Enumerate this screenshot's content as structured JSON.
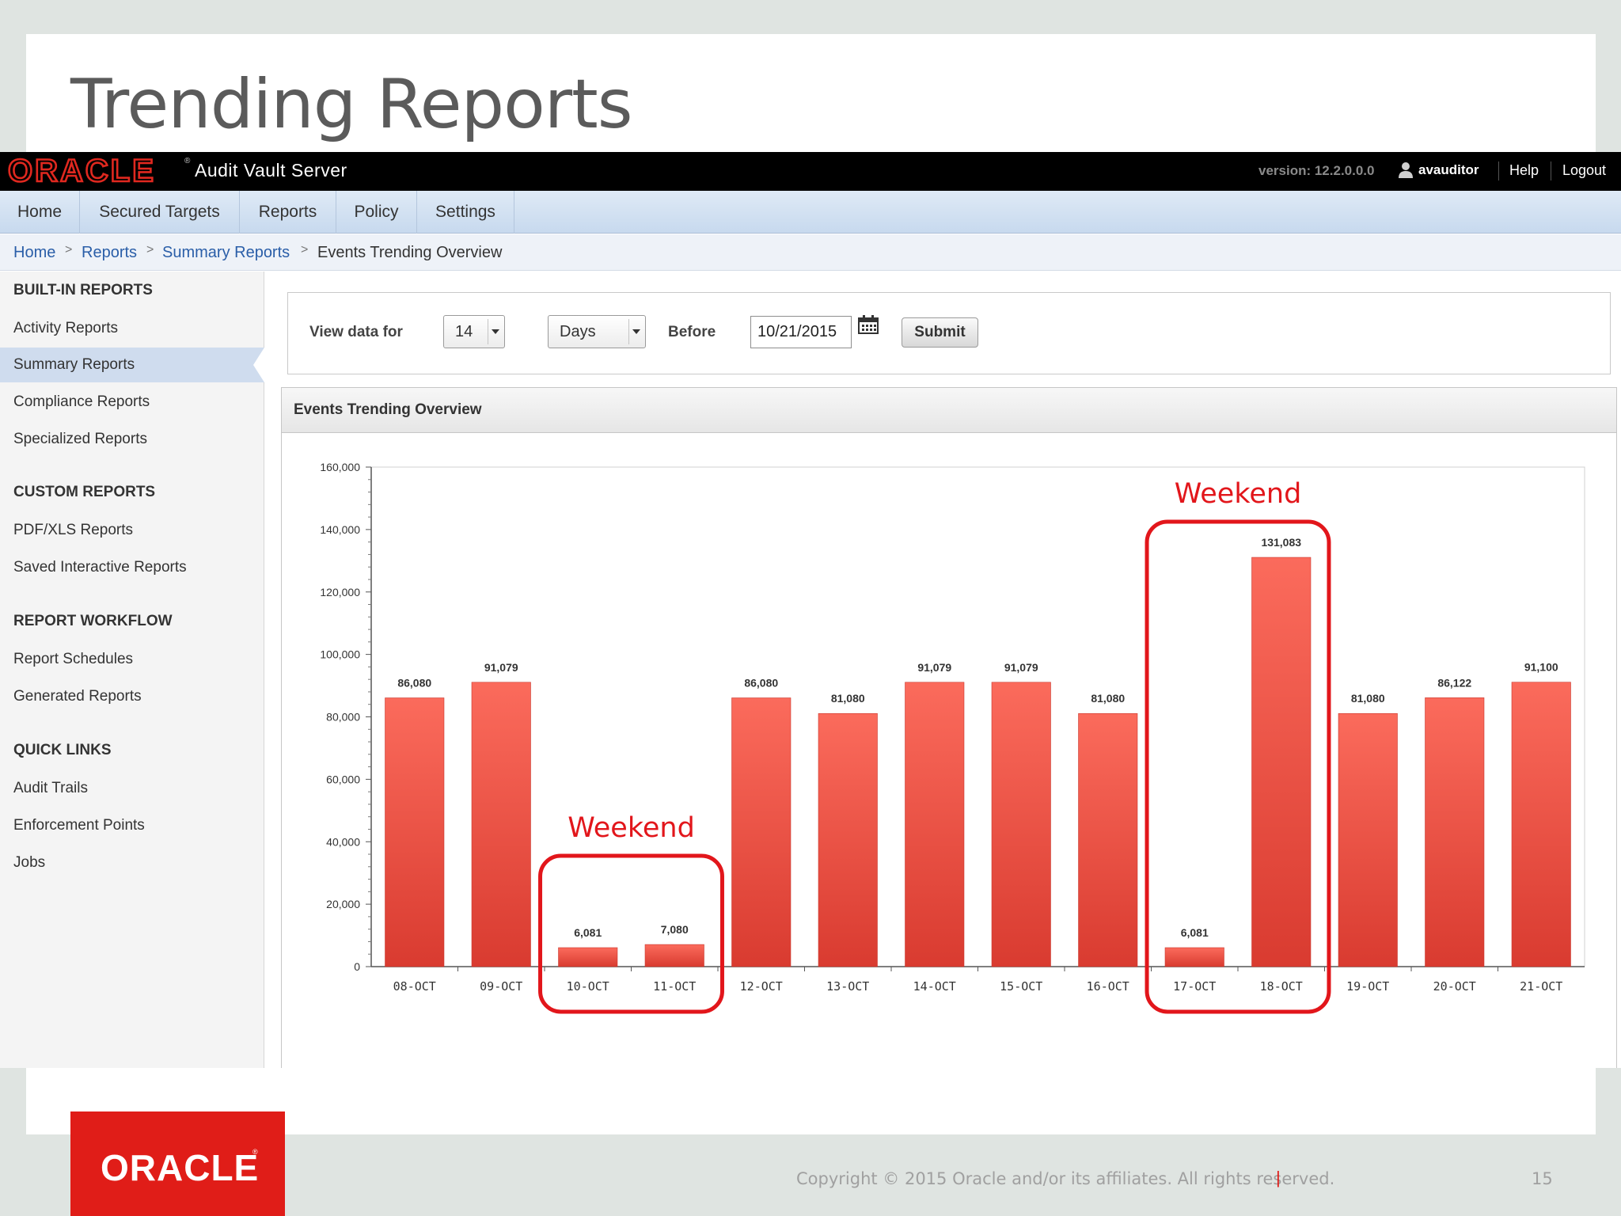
{
  "slide": {
    "title": "Trending Reports",
    "copyright": "Copyright © 2015 Oracle and/or its affiliates. All rights reserved.",
    "copyright_sep": "|",
    "page_number": "15",
    "logo_text": "ORACLE",
    "brand_color": "#e01d18"
  },
  "topbar": {
    "logo": "ORACLE",
    "logo_reg": "®",
    "app_name": "Audit Vault Server",
    "version": "version: 12.2.0.0.0",
    "user": "avauditor",
    "help": "Help",
    "logout": "Logout",
    "user_icon": "user-icon"
  },
  "nav": {
    "tabs": [
      {
        "label": "Home"
      },
      {
        "label": "Secured Targets"
      },
      {
        "label": "Reports"
      },
      {
        "label": "Policy"
      },
      {
        "label": "Settings"
      }
    ]
  },
  "breadcrumb": {
    "items": [
      "Home",
      "Reports",
      "Summary Reports"
    ],
    "separator": ">",
    "current": "Events Trending Overview"
  },
  "sidebar": {
    "built_in_heading": "BUILT-IN REPORTS",
    "built_in": [
      "Activity Reports",
      "Summary Reports",
      "Compliance Reports",
      "Specialized Reports"
    ],
    "selected": "Summary Reports",
    "custom_heading": "CUSTOM REPORTS",
    "custom": [
      "PDF/XLS Reports",
      "Saved Interactive Reports"
    ],
    "workflow_heading": "REPORT WORKFLOW",
    "workflow": [
      "Report Schedules",
      "Generated Reports"
    ],
    "quick_heading": "QUICK LINKS",
    "quick": [
      "Audit Trails",
      "Enforcement Points",
      "Jobs"
    ]
  },
  "filter": {
    "view_label": "View data for",
    "count_value": "14",
    "unit_value": "Days",
    "before_label": "Before",
    "date_value": "10/21/2015",
    "submit_label": "Submit",
    "calendar_icon": "calendar-icon"
  },
  "chart_panel": {
    "title": "Events Trending Overview"
  },
  "chart_data": {
    "type": "bar",
    "categories": [
      "08-OCT",
      "09-OCT",
      "10-OCT",
      "11-OCT",
      "12-OCT",
      "13-OCT",
      "14-OCT",
      "15-OCT",
      "16-OCT",
      "17-OCT",
      "18-OCT",
      "19-OCT",
      "20-OCT",
      "21-OCT"
    ],
    "values": [
      86080,
      91079,
      6081,
      7080,
      86080,
      81080,
      91079,
      91079,
      81080,
      6081,
      131083,
      81080,
      86122,
      91100
    ],
    "data_labels": [
      "86,080",
      "91,079",
      "6,081",
      "7,080",
      "86,080",
      "81,080",
      "91,079",
      "91,079",
      "81,080",
      "6,081",
      "131,083",
      "81,080",
      "86,122",
      "91,100"
    ],
    "yticks": [
      0,
      20000,
      40000,
      60000,
      80000,
      100000,
      120000,
      140000,
      160000
    ],
    "ytick_labels": [
      "0",
      "20,000",
      "40,000",
      "60,000",
      "80,000",
      "100,000",
      "120,000",
      "140,000",
      "160,000"
    ],
    "ylim": [
      0,
      160000
    ],
    "title": "",
    "xlabel": "",
    "ylabel": "",
    "grid": false,
    "bar_color": "#e8493d",
    "annotations": [
      {
        "text": "Weekend",
        "from": "10-OCT",
        "to": "11-OCT",
        "color": "#e2161b"
      },
      {
        "text": "Weekend",
        "from": "17-OCT",
        "to": "18-OCT",
        "color": "#e2161b"
      }
    ]
  }
}
